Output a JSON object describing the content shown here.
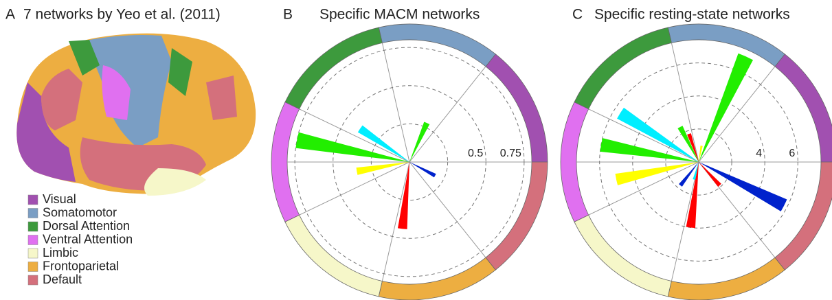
{
  "panel_a": {
    "letter": "A",
    "title": "7 networks by Yeo et al. (2011)",
    "legend": [
      {
        "name": "Visual",
        "color": "#a150b0"
      },
      {
        "name": "Somatomotor",
        "color": "#7a9ec4"
      },
      {
        "name": "Dorsal Attention",
        "color": "#3d9a3d"
      },
      {
        "name": "Ventral Attention",
        "color": "#e070f0"
      },
      {
        "name": "Limbic",
        "color": "#f6f7c9"
      },
      {
        "name": "Frontoparietal",
        "color": "#edae41"
      },
      {
        "name": "Default",
        "color": "#d4707c"
      }
    ]
  },
  "chart_data": [
    {
      "type": "polar_bar",
      "letter": "B",
      "title": "Specific MACM networks",
      "theta": [
        66,
        146,
        169,
        190,
        264,
        332
      ],
      "values": [
        0.28,
        0.39,
        0.75,
        0.35,
        0.44,
        0.19
      ],
      "colors": [
        "#22ee00",
        "#00eeff",
        "#22ee00",
        "#ffff00",
        "#ff0000",
        "#0022cc"
      ],
      "ylim": [
        0,
        0.8
      ],
      "yticks": [
        {
          "value": 0.25,
          "label": null
        },
        0.5,
        0.75
      ]
    },
    {
      "type": "polar_bar",
      "letter": "C",
      "title": "Specific resting-state networks",
      "theta": [
        66,
        148,
        170,
        192,
        333,
        263,
        118,
        109,
        232,
        312,
        255,
        80
      ],
      "values": [
        7.0,
        5.6,
        6.0,
        5.1,
        5.8,
        4.0,
        2.4,
        1.8,
        1.8,
        1.9,
        1.1,
        1.0
      ],
      "colors": [
        "#22ee00",
        "#00eeff",
        "#22ee00",
        "#ffff00",
        "#0022cc",
        "#ff0000",
        "#22ee00",
        "#ff0000",
        "#0022cc",
        "#ff0000",
        "#00eeff",
        "#ffff00"
      ],
      "ylim": [
        0,
        7.4
      ],
      "yticks": [
        {
          "value": 2,
          "label": null
        },
        4,
        6
      ]
    }
  ]
}
